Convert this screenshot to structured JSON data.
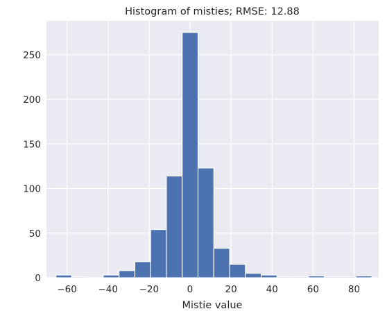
{
  "chart_data": {
    "type": "bar",
    "title": "Histogram of misties; RMSE: 12.88",
    "xlabel": "Mistie value",
    "ylabel": "",
    "xlim": [
      -70,
      92
    ],
    "ylim": [
      0,
      288
    ],
    "xticks": [
      -60,
      -40,
      -20,
      0,
      20,
      40,
      60,
      80
    ],
    "yticks": [
      0,
      50,
      100,
      150,
      200,
      250
    ],
    "grid": true,
    "bin_edges": [
      -65.4,
      -57.7,
      -50.0,
      -42.3,
      -34.6,
      -26.9,
      -19.2,
      -11.5,
      -3.8,
      3.9,
      11.6,
      19.3,
      27.0,
      34.7,
      42.4,
      50.1,
      57.8,
      65.5,
      73.2,
      80.9,
      88.6
    ],
    "values": [
      3,
      1,
      0,
      3,
      8,
      18,
      54,
      114,
      275,
      123,
      33,
      15,
      5,
      3,
      1,
      1,
      2,
      1,
      1,
      2
    ],
    "color": "#4c72b0",
    "background": "#eaeaf2"
  }
}
